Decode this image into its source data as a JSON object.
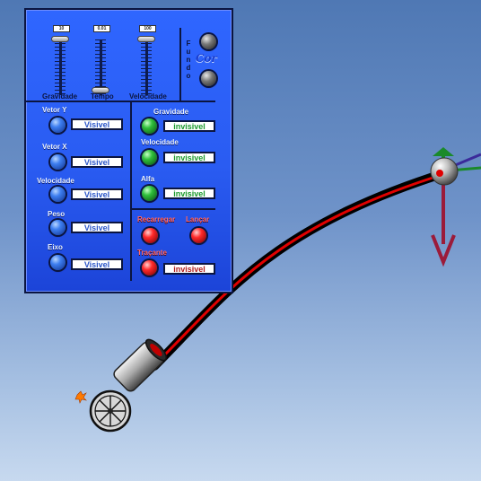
{
  "sliders": [
    {
      "label": "Gravidade",
      "value": "10"
    },
    {
      "label": "Tempo",
      "value": "0.01"
    },
    {
      "label": "Velocidade",
      "value": "100"
    }
  ],
  "background": {
    "label_letters": [
      "F",
      "u",
      "n",
      "d",
      "o"
    ],
    "cor_label": "Cor"
  },
  "left_toggles": [
    {
      "label": "Vetor Y",
      "state": "Visivel"
    },
    {
      "label": "Vetor X",
      "state": "Visivel"
    },
    {
      "label": "Velocidade",
      "state": "Visivel"
    },
    {
      "label": "Peso",
      "state": "Visivel"
    },
    {
      "label": "Eixo",
      "state": "Visivel"
    }
  ],
  "right_toggles": [
    {
      "label": "Gravidade",
      "state": "invisivel"
    },
    {
      "label": "Velocidade",
      "state": "invisivel"
    },
    {
      "label": "Alfa",
      "state": "invisivel"
    }
  ],
  "actions": {
    "reload": "Recarregar",
    "launch": "Lançar"
  },
  "tracer": {
    "label": "Traçante",
    "state": "invisivel"
  },
  "colors": {
    "panel": "#2f66ff",
    "trajectory_outer": "#000000",
    "trajectory_inner": "#e00000",
    "weight_vector": "#9b1b3a",
    "velocity_vector": "#1a8a2a",
    "x_vector": "#3b2a9a"
  },
  "icons": [
    "cannon-icon",
    "fuse-spark-icon",
    "projectile-ball-icon"
  ]
}
